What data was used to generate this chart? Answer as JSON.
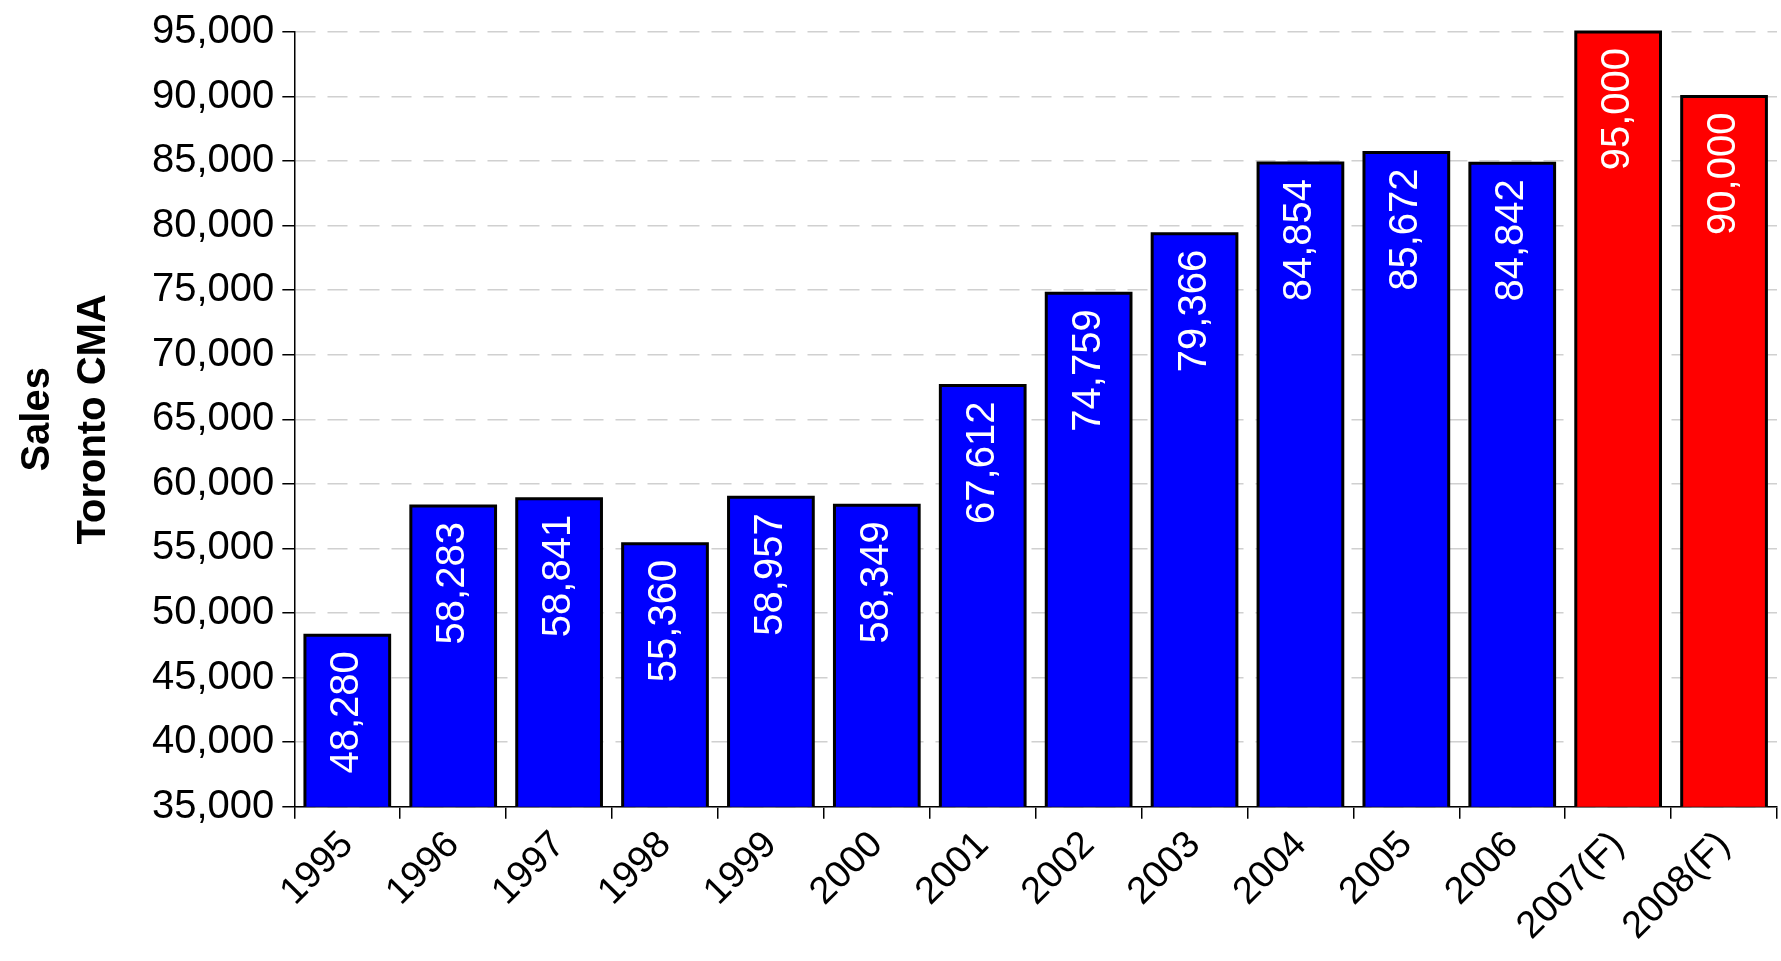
{
  "chart_data": {
    "type": "bar",
    "ylabel": "Sales\nToronto CMA",
    "categories": [
      "1995",
      "1996",
      "1997",
      "1998",
      "1999",
      "2000",
      "2001",
      "2002",
      "2003",
      "2004",
      "2005",
      "2006",
      "2007(F)",
      "2008(F)"
    ],
    "values": [
      48280,
      58283,
      58841,
      55360,
      58957,
      58349,
      67612,
      74759,
      79366,
      84854,
      85672,
      84842,
      95000,
      90000
    ],
    "value_labels": [
      "48,280",
      "58,283",
      "58,841",
      "55,360",
      "58,957",
      "58,349",
      "67,612",
      "74,759",
      "79,366",
      "84,854",
      "85,672",
      "84,842",
      "95,000",
      "90,000"
    ],
    "colors": [
      "#0000ff",
      "#0000ff",
      "#0000ff",
      "#0000ff",
      "#0000ff",
      "#0000ff",
      "#0000ff",
      "#0000ff",
      "#0000ff",
      "#0000ff",
      "#0000ff",
      "#0000ff",
      "#ff0000",
      "#ff0000"
    ],
    "ylim": [
      35000,
      95000
    ],
    "yticks": [
      {
        "value": 35000,
        "label": "35,000"
      },
      {
        "value": 40000,
        "label": "40,000"
      },
      {
        "value": 45000,
        "label": "45,000"
      },
      {
        "value": 50000,
        "label": "50,000"
      },
      {
        "value": 55000,
        "label": "55,000"
      },
      {
        "value": 60000,
        "label": "60,000"
      },
      {
        "value": 65000,
        "label": "65,000"
      },
      {
        "value": 70000,
        "label": "70,000"
      },
      {
        "value": 75000,
        "label": "75,000"
      },
      {
        "value": 80000,
        "label": "80,000"
      },
      {
        "value": 85000,
        "label": "85,000"
      },
      {
        "value": 90000,
        "label": "90,000"
      },
      {
        "value": 95000,
        "label": "95,000"
      }
    ],
    "grid": "y"
  }
}
